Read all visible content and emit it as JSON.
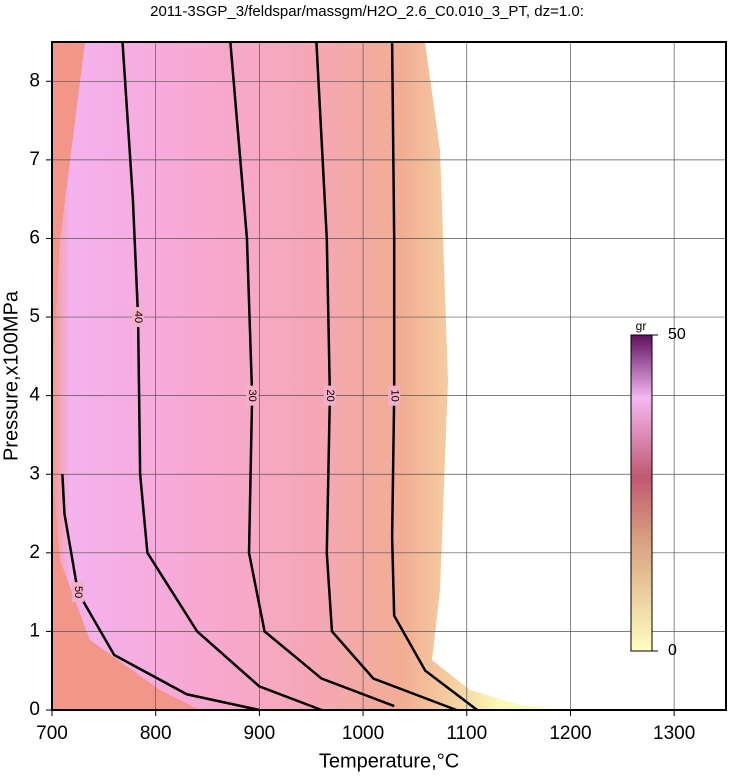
{
  "chart_data": {
    "type": "contour",
    "title": "2011-3SGP_3/feldspar/massgm/H2O_2.6_C0.010_3_PT, dz=1.0:",
    "x_label": "Temperature,°C",
    "y_label": "Pressure,x100MPa",
    "xlim": [
      700,
      1350
    ],
    "ylim": [
      0,
      8.5
    ],
    "xticks": [
      700,
      800,
      900,
      1000,
      1100,
      1200,
      1300
    ],
    "yticks": [
      0,
      1,
      2,
      3,
      4,
      5,
      6,
      7,
      8
    ],
    "grid": true,
    "colorbar": {
      "label": "gr",
      "lim": [
        0,
        50
      ],
      "ticks": [
        0,
        50
      ]
    },
    "contours": [
      {
        "level": 10,
        "x": [
          1028,
          1030,
          1030,
          1028,
          1030,
          1060,
          1110
        ],
        "y": [
          8.5,
          6,
          4,
          2.2,
          1.2,
          0.5,
          0
        ]
      },
      {
        "level": 20,
        "x": [
          955,
          965,
          968,
          965,
          970,
          1010,
          1090
        ],
        "y": [
          8.5,
          6,
          4,
          2,
          1,
          0.4,
          0
        ]
      },
      {
        "level": 30,
        "x": [
          872,
          888,
          893,
          890,
          905,
          960,
          1030
        ],
        "y": [
          8.5,
          6,
          4,
          2,
          1,
          0.4,
          0.05
        ]
      },
      {
        "level": 40,
        "x": [
          768,
          778,
          783,
          785,
          792,
          840,
          900,
          960
        ],
        "y": [
          8.5,
          6.5,
          5,
          3,
          2,
          1,
          0.3,
          0
        ]
      },
      {
        "level": 50,
        "x": [
          710,
          712,
          725,
          760,
          830,
          900
        ],
        "y": [
          3,
          2.5,
          1.5,
          0.7,
          0.2,
          0
        ]
      }
    ]
  }
}
